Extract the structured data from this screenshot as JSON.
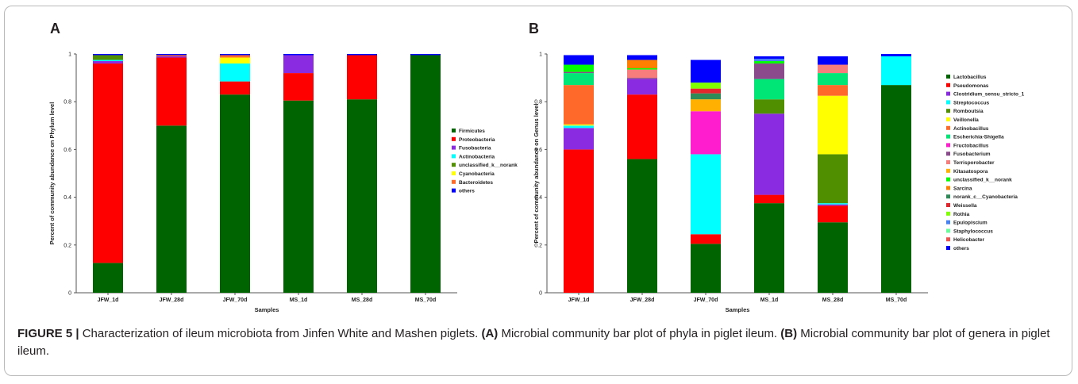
{
  "panels": {
    "a_label": "A",
    "b_label": "B"
  },
  "caption": {
    "figure_label": "FIGURE 5 |",
    "text_1": " Characterization of ileum microbiota from Jinfen White and Mashen piglets. ",
    "ref_a": "(A)",
    "text_2": " Microbial community bar plot of phyla in piglet ileum. ",
    "ref_b": "(B)",
    "text_3": " Microbial community bar plot of genera in piglet ileum."
  },
  "chart_data": [
    {
      "type": "bar",
      "stacked": true,
      "xlabel": "Samples",
      "ylabel": "Percent of community abundance on Phylum level",
      "ylim": [
        0,
        1
      ],
      "yticks": [
        "0",
        "0.2",
        "0.4",
        "0.6",
        "0.8",
        "1"
      ],
      "legend_position": "right",
      "categories": [
        "JFW_1d",
        "JFW_28d",
        "JFW_70d",
        "MS_1d",
        "MS_28d",
        "MS_70d"
      ],
      "series": [
        {
          "name": "Firmicutes",
          "color": "#006400",
          "values": [
            0.125,
            0.7,
            0.83,
            0.805,
            0.81,
            0.995
          ]
        },
        {
          "name": "Proteobacteria",
          "color": "#ff0000",
          "values": [
            0.835,
            0.285,
            0.055,
            0.115,
            0.185,
            0.0
          ]
        },
        {
          "name": "Fusobacteria",
          "color": "#8a2be2",
          "values": [
            0.01,
            0.005,
            0.0,
            0.075,
            0.0,
            0.0
          ]
        },
        {
          "name": "Actinobacteria",
          "color": "#00ffff",
          "values": [
            0.005,
            0.0,
            0.075,
            0.0,
            0.0,
            0.0
          ]
        },
        {
          "name": "unclassified_k__norank",
          "color": "#4f8f00",
          "values": [
            0.02,
            0.0,
            0.0,
            0.0,
            0.0,
            0.0
          ]
        },
        {
          "name": "Cyanobacteria",
          "color": "#ffff00",
          "values": [
            0.0,
            0.0,
            0.025,
            0.0,
            0.0,
            0.0
          ]
        },
        {
          "name": "Bacteroidetes",
          "color": "#ff6a2a",
          "values": [
            0.0,
            0.005,
            0.01,
            0.0,
            0.0,
            0.0
          ]
        },
        {
          "name": "others",
          "color": "#0000ff",
          "values": [
            0.005,
            0.005,
            0.005,
            0.005,
            0.005,
            0.005
          ]
        }
      ]
    },
    {
      "type": "bar",
      "stacked": true,
      "xlabel": "Samples",
      "ylabel": "Percent of community abundance on Genus level",
      "ylim": [
        0,
        1
      ],
      "yticks": [
        "0",
        "0.2",
        "0.4",
        "0.6",
        "0.8",
        "1"
      ],
      "legend_position": "right",
      "categories": [
        "JFW_1d",
        "JFW_28d",
        "JFW_70d",
        "MS_1d",
        "MS_28d",
        "MS_70d"
      ],
      "series": [
        {
          "name": "Lactobacillus",
          "color": "#006400",
          "values": [
            0.0,
            0.56,
            0.205,
            0.375,
            0.295,
            0.87
          ]
        },
        {
          "name": "Pseudomonas",
          "color": "#ff0000",
          "values": [
            0.6,
            0.27,
            0.04,
            0.035,
            0.07,
            0.0
          ]
        },
        {
          "name": "Clostridium_sensu_stricto_1",
          "color": "#8a2be2",
          "values": [
            0.09,
            0.065,
            0.0,
            0.34,
            0.005,
            0.0
          ]
        },
        {
          "name": "Streptococcus",
          "color": "#00ffff",
          "values": [
            0.01,
            0.0,
            0.335,
            0.0,
            0.005,
            0.12
          ]
        },
        {
          "name": "Romboutsia",
          "color": "#4f8f00",
          "values": [
            0.0,
            0.0,
            0.0,
            0.06,
            0.205,
            0.0
          ]
        },
        {
          "name": "Veillonella",
          "color": "#ffff00",
          "values": [
            0.005,
            0.0,
            0.0,
            0.0,
            0.245,
            0.0
          ]
        },
        {
          "name": "Actinobacillus",
          "color": "#ff6a2a",
          "values": [
            0.165,
            0.0,
            0.0,
            0.0,
            0.045,
            0.0
          ]
        },
        {
          "name": "Escherichia-Shigella",
          "color": "#00e676",
          "values": [
            0.05,
            0.0,
            0.0,
            0.085,
            0.05,
            0.0
          ]
        },
        {
          "name": "Fructobacillus",
          "color": "#ff1dce",
          "values": [
            0.0,
            0.0,
            0.18,
            0.0,
            0.0,
            0.0
          ]
        },
        {
          "name": "Fusobacterium",
          "color": "#8b4a8b",
          "values": [
            0.005,
            0.005,
            0.0,
            0.065,
            0.0,
            0.0
          ]
        },
        {
          "name": "Terrisporobacter",
          "color": "#f77c7c",
          "values": [
            0.0,
            0.035,
            0.0,
            0.0,
            0.035,
            0.0
          ]
        },
        {
          "name": "Kitasatospora",
          "color": "#ffb000",
          "values": [
            0.0,
            0.0,
            0.05,
            0.0,
            0.0,
            0.0
          ]
        },
        {
          "name": "unclassified_k__norank",
          "color": "#00ff00",
          "values": [
            0.03,
            0.005,
            0.0,
            0.01,
            0.0,
            0.0
          ]
        },
        {
          "name": "Sarcina",
          "color": "#ff7f00",
          "values": [
            0.0,
            0.035,
            0.0,
            0.0,
            0.0,
            0.0
          ]
        },
        {
          "name": "norank_c__Cyanobacteria",
          "color": "#2e8b57",
          "values": [
            0.0,
            0.0,
            0.025,
            0.0,
            0.0,
            0.0
          ]
        },
        {
          "name": "Weissella",
          "color": "#e3262e",
          "values": [
            0.0,
            0.0,
            0.02,
            0.0,
            0.0,
            0.0
          ]
        },
        {
          "name": "Rothia",
          "color": "#80ff00",
          "values": [
            0.0,
            0.0,
            0.025,
            0.0,
            0.0,
            0.0
          ]
        },
        {
          "name": "Epulopiscium",
          "color": "#4682f4",
          "values": [
            0.0,
            0.0,
            0.0,
            0.01,
            0.0,
            0.0
          ]
        },
        {
          "name": "Staphylococcus",
          "color": "#66ff99",
          "values": [
            0.0,
            0.0,
            0.0,
            0.0,
            0.0,
            0.0
          ]
        },
        {
          "name": "Helicobacter",
          "color": "#ef5350",
          "values": [
            0.0,
            0.0,
            0.0,
            0.0,
            0.0,
            0.0
          ]
        },
        {
          "name": "others",
          "color": "#0000ff",
          "values": [
            0.04,
            0.02,
            0.095,
            0.01,
            0.035,
            0.01
          ]
        }
      ]
    }
  ]
}
